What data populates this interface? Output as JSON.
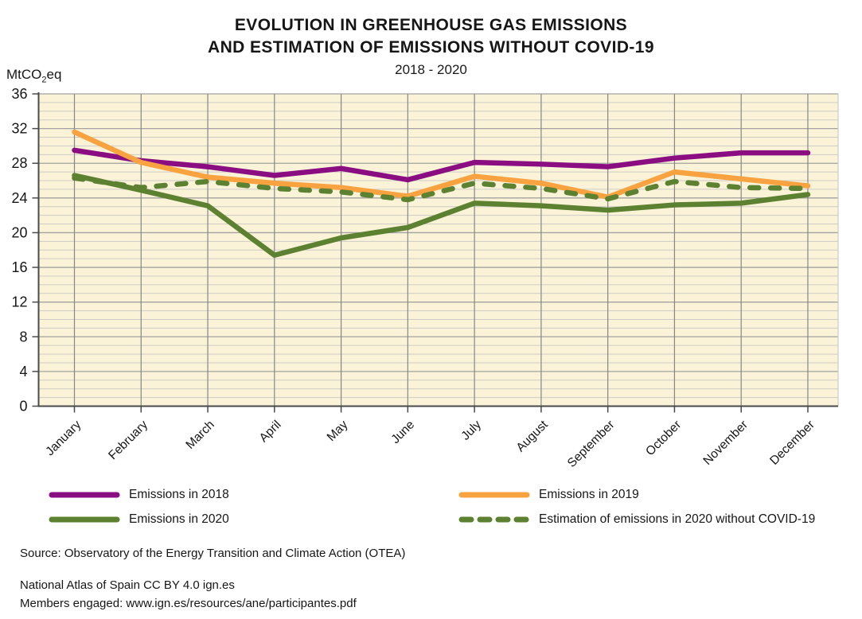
{
  "title": {
    "line1": "EVOLUTION IN GREENHOUSE GAS EMISSIONS",
    "line2": "AND ESTIMATION OF EMISSIONS WITHOUT COVID-19",
    "subtitle": "2018 - 2020"
  },
  "y_unit": {
    "prefix": "MtCO",
    "sub": "2",
    "suffix": "eq"
  },
  "chart_data": {
    "type": "line",
    "title": "EVOLUTION IN GREENHOUSE GAS EMISSIONS AND ESTIMATION OF EMISSIONS WITHOUT COVID-19",
    "subtitle": "2018 - 2020",
    "ylabel": "MtCO2eq",
    "categories": [
      "January",
      "February",
      "March",
      "April",
      "May",
      "June",
      "July",
      "August",
      "September",
      "October",
      "November",
      "December"
    ],
    "ylim": [
      0,
      36
    ],
    "ytick_step": 4,
    "minor_ytick_step": 1,
    "grid": true,
    "legend_position": "bottom",
    "plot_bg": "#fbf3d8",
    "colors": {
      "grid_minor": "#cccbc6",
      "grid_major": "#a2a2a0",
      "grid_vertical": "#868684",
      "axis": "#4a4a4a",
      "tick_label": "#161616"
    },
    "series": [
      {
        "name": "Emissions in 2018",
        "color": "#8a0d82",
        "style": "solid",
        "values": [
          29.5,
          28.3,
          27.6,
          26.6,
          27.4,
          26.1,
          28.1,
          27.9,
          27.6,
          28.6,
          29.2,
          29.2
        ]
      },
      {
        "name": "Emissions in 2019",
        "color": "#f9a240",
        "style": "solid",
        "values": [
          31.6,
          28.1,
          26.4,
          25.7,
          25.2,
          24.2,
          26.5,
          25.7,
          24.1,
          27.0,
          26.2,
          25.4
        ]
      },
      {
        "name": "Emissions in 2020",
        "color": "#5c8130",
        "style": "solid",
        "values": [
          26.6,
          24.9,
          23.1,
          17.4,
          19.4,
          20.6,
          23.4,
          23.1,
          22.6,
          23.2,
          23.4,
          24.4
        ]
      },
      {
        "name": "Estimation of emissions in 2020 without COVID-19",
        "color": "#5c8130",
        "style": "dashed",
        "values": [
          26.3,
          25.2,
          25.9,
          25.1,
          24.7,
          23.8,
          25.7,
          25.1,
          23.9,
          25.9,
          25.2,
          25.1
        ]
      }
    ]
  },
  "footer": {
    "source": "Source: Observatory of the Energy Transition and Climate Action (OTEA)",
    "license": "National Atlas of Spain CC BY 4.0 ign.es",
    "members": "Members engaged: www.ign.es/resources/ane/participantes.pdf"
  }
}
